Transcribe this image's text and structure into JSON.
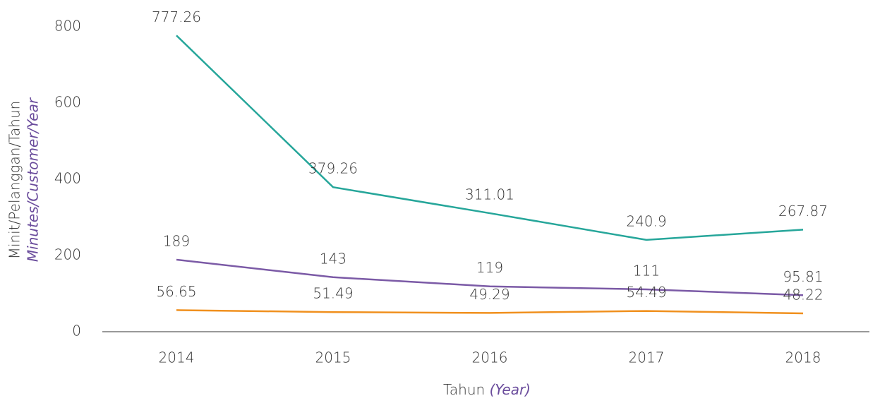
{
  "chart_data": {
    "type": "line",
    "ylabel": "Minit/Pelanggan/Tahun",
    "ylabel_en": "Minutes/Customer/Year",
    "xlabel": "Tahun",
    "xlabel_en": "(Year)",
    "categories": [
      "2014",
      "2015",
      "2016",
      "2017",
      "2018"
    ],
    "series": [
      {
        "color": "#26a69a",
        "values": [
          777.26,
          379.26,
          311.01,
          240.9,
          267.87
        ]
      },
      {
        "color": "#7b5aa6",
        "values": [
          189,
          143,
          119,
          111,
          95.81
        ]
      },
      {
        "color": "#f0901e",
        "values": [
          56.65,
          51.49,
          49.29,
          54.49,
          48.22
        ]
      }
    ],
    "ylim": [
      0,
      800
    ],
    "yticks": [
      0,
      200,
      400,
      600,
      800
    ],
    "grid": false
  }
}
